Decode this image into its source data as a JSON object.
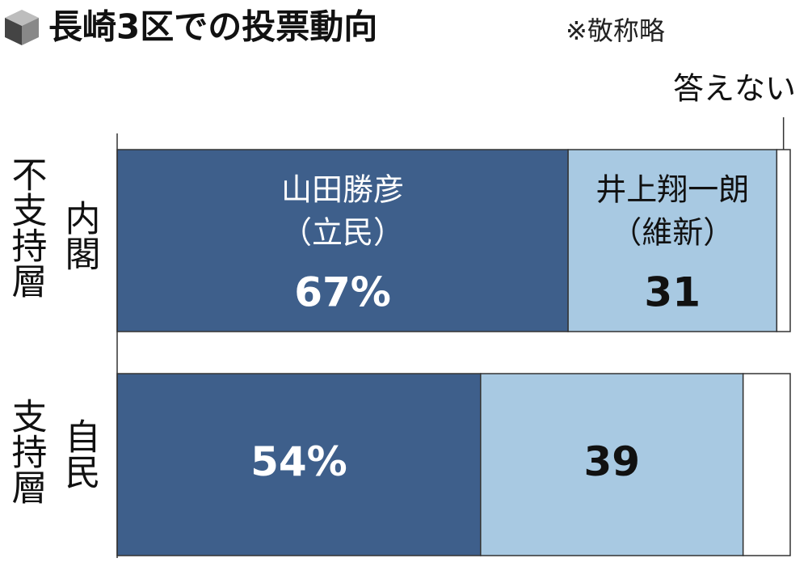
{
  "chart_data": {
    "type": "stacked-bar",
    "title": "長崎3区での投票動向",
    "note": "※敬称略",
    "categories": [
      [
        "内閣",
        "不支持層"
      ],
      [
        "自民",
        "支持層"
      ]
    ],
    "series": [
      {
        "name": "山田勝彦",
        "affiliation": "（立民）",
        "color": "#3e5f8b",
        "values": [
          67,
          54
        ],
        "value_labels": [
          "67%",
          "54%"
        ]
      },
      {
        "name": "井上翔一朗",
        "affiliation": "（維新）",
        "color": "#a8c9e2",
        "values": [
          31,
          39
        ]
      },
      {
        "name": "答えない",
        "color": "#ffffff",
        "values": [
          2,
          7
        ]
      }
    ],
    "xlim": [
      0,
      100
    ]
  }
}
